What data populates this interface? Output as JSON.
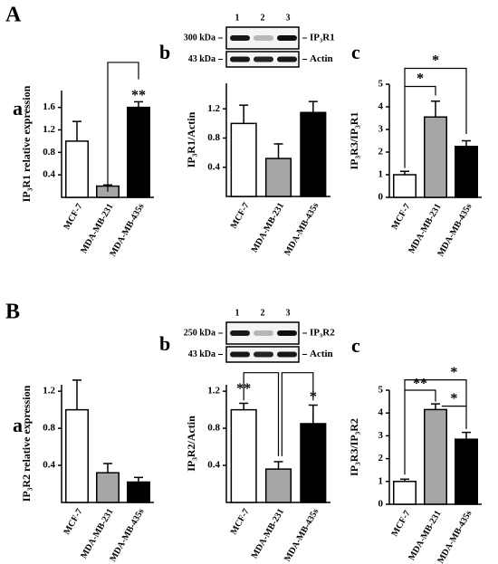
{
  "sections": [
    "A",
    "B"
  ],
  "blots": [
    {
      "lanes": [
        "1",
        "2",
        "3"
      ],
      "rows": [
        {
          "kda": "300 kDa",
          "name": "IP₃R1"
        },
        {
          "kda": "43 kDa",
          "name": "Actin"
        }
      ]
    },
    {
      "lanes": [
        "1",
        "2",
        "3"
      ],
      "rows": [
        {
          "kda": "250 kDa",
          "name": "IP₃R2"
        },
        {
          "kda": "43 kDa",
          "name": "Actin"
        }
      ]
    }
  ],
  "chart_data": [
    {
      "type": "bar",
      "panel": "a",
      "y_label": "IP₃R1 relative expression",
      "categories": [
        "MCF-7",
        "MDA-MB-231",
        "MDA-MB-435s"
      ],
      "values": [
        1.0,
        0.2,
        1.6
      ],
      "errors": [
        0.35,
        0.02,
        0.1
      ],
      "colors": [
        "#ffffff",
        "#a6a6a6",
        "#000000"
      ],
      "ylim": [
        0,
        1.9
      ],
      "yticks": [
        0.4,
        0.8,
        1.2,
        1.6
      ],
      "annotations": [
        "**"
      ]
    },
    {
      "type": "bar",
      "panel": "b",
      "y_label": "IP₃R1/Actin",
      "categories": [
        "MCF-7",
        "MDA-MB-231",
        "MDA-MB-435s"
      ],
      "values": [
        1.0,
        0.52,
        1.15
      ],
      "errors": [
        0.25,
        0.2,
        0.15
      ],
      "colors": [
        "#ffffff",
        "#a6a6a6",
        "#000000"
      ],
      "ylim": [
        0,
        1.55
      ],
      "yticks": [
        0.4,
        0.8,
        1.2
      ],
      "annotations": []
    },
    {
      "type": "bar",
      "panel": "c",
      "y_label": "IP₃R3/IP₃R1",
      "categories": [
        "MCF-7",
        "MDA-MB-231",
        "MDA-MB-435s"
      ],
      "values": [
        1.0,
        3.55,
        2.25
      ],
      "errors": [
        0.15,
        0.7,
        0.25
      ],
      "colors": [
        "#ffffff",
        "#a6a6a6",
        "#000000"
      ],
      "ylim": [
        0,
        5
      ],
      "yticks": [
        0,
        1,
        2,
        3,
        4,
        5
      ],
      "annotations": [
        "*",
        "*"
      ]
    },
    {
      "type": "bar",
      "panel": "a",
      "y_label": "IP₃R2 relative expression",
      "categories": [
        "MCF-7",
        "MDA-MB-231",
        "MDA-MB-435s"
      ],
      "values": [
        1.0,
        0.32,
        0.22
      ],
      "errors": [
        0.32,
        0.1,
        0.05
      ],
      "colors": [
        "#ffffff",
        "#a6a6a6",
        "#000000"
      ],
      "ylim": [
        0,
        1.27
      ],
      "yticks": [
        0.4,
        0.8,
        1.2
      ],
      "annotations": []
    },
    {
      "type": "bar",
      "panel": "b",
      "y_label": "IP₃R2/Actin",
      "categories": [
        "MCF-7",
        "MDA-MB-231",
        "MDA-MB-435s"
      ],
      "values": [
        1.0,
        0.36,
        0.85
      ],
      "errors": [
        0.07,
        0.08,
        0.2
      ],
      "colors": [
        "#ffffff",
        "#a6a6a6",
        "#000000"
      ],
      "ylim": [
        0,
        1.27
      ],
      "yticks": [
        0.4,
        0.8,
        1.2
      ],
      "annotations": [
        "**",
        "*"
      ]
    },
    {
      "type": "bar",
      "panel": "c",
      "y_label": "IP₃R3/IP₃R2",
      "categories": [
        "MCF-7",
        "MDA-MB-231",
        "MDA-MB-435s"
      ],
      "values": [
        1.0,
        4.15,
        2.85
      ],
      "errors": [
        0.1,
        0.25,
        0.3
      ],
      "colors": [
        "#ffffff",
        "#a6a6a6",
        "#000000"
      ],
      "ylim": [
        0,
        5
      ],
      "yticks": [
        0,
        1,
        2,
        3,
        4,
        5
      ],
      "annotations": [
        "**",
        "*",
        "*"
      ]
    }
  ]
}
